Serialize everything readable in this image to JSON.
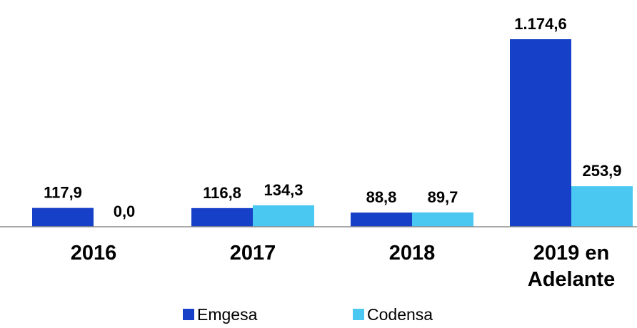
{
  "chart_data": {
    "type": "bar",
    "categories": [
      "2016",
      "2017",
      "2018",
      "2019 en Adelante"
    ],
    "category_lines": [
      [
        "2016"
      ],
      [
        "2017"
      ],
      [
        "2018"
      ],
      [
        "2019 en",
        "Adelante"
      ]
    ],
    "series": [
      {
        "name": "Emgesa",
        "color": "#1740C8",
        "values": [
          117.9,
          116.8,
          88.8,
          1174.6
        ],
        "labels": [
          "117,9",
          "116,8",
          "88,8",
          "1.174,6"
        ]
      },
      {
        "name": "Codensa",
        "color": "#4BC8F2",
        "values": [
          0.0,
          134.3,
          89.7,
          253.9
        ],
        "labels": [
          "0,0",
          "134,3",
          "89,7",
          "253,9"
        ]
      }
    ],
    "title": "",
    "xlabel": "",
    "ylabel": "",
    "ylim": [
      0,
      1200
    ],
    "grid": false,
    "legend_position": "bottom"
  }
}
